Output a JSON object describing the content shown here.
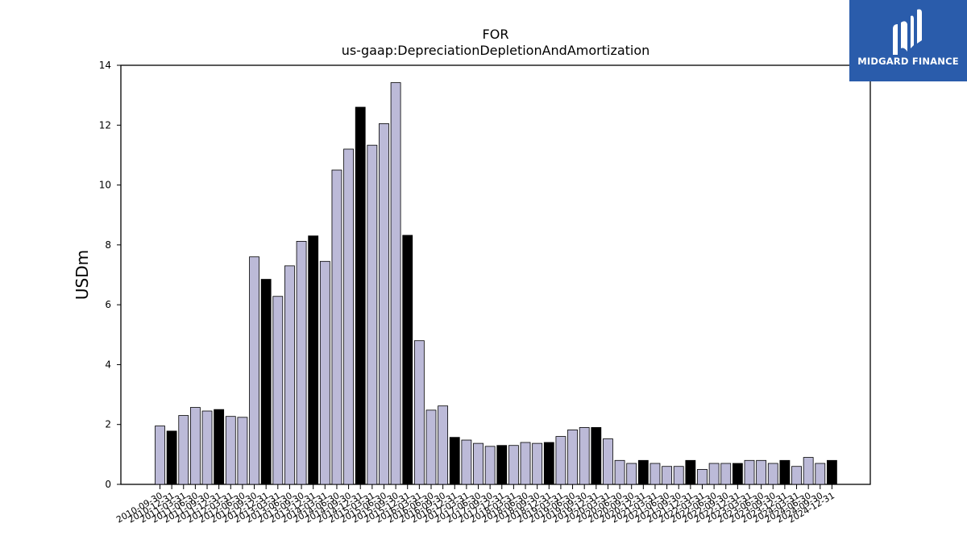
{
  "chart_data": {
    "type": "bar",
    "title_line1": "FOR",
    "title_line2": "us-gaap:DepreciationDepletionAndAmortization",
    "xlabel": "",
    "ylabel": "USDm",
    "ylim": [
      0,
      14
    ],
    "yticks": [
      0,
      2,
      4,
      6,
      8,
      10,
      12,
      14
    ],
    "grid": false,
    "colors": {
      "quarter": "#bcbad8",
      "year_end": "#000000",
      "edge": "#000000"
    },
    "categories": [
      "2010-09-30",
      "2010-12-31",
      "2011-03-31",
      "2011-06-30",
      "2011-09-30",
      "2011-12-31",
      "2012-03-31",
      "2012-06-30",
      "2012-09-30",
      "2012-12-31",
      "2013-03-31",
      "2013-06-30",
      "2013-09-30",
      "2013-12-31",
      "2014-03-31",
      "2014-06-30",
      "2014-09-30",
      "2014-12-31",
      "2015-03-31",
      "2015-06-30",
      "2015-09-30",
      "2015-12-31",
      "2016-03-31",
      "2016-06-30",
      "2016-09-30",
      "2016-12-31",
      "2017-03-31",
      "2017-06-30",
      "2017-09-30",
      "2017-12-31",
      "2018-03-31",
      "2018-06-30",
      "2018-09-30",
      "2018-12-31",
      "2019-03-31",
      "2019-06-30",
      "2019-09-30",
      "2019-12-31",
      "2020-03-31",
      "2020-06-30",
      "2020-09-30",
      "2020-12-31",
      "2021-03-31",
      "2021-06-30",
      "2021-09-30",
      "2021-12-31",
      "2022-03-31",
      "2022-06-30",
      "2022-09-30",
      "2022-12-31",
      "2023-03-31",
      "2023-06-30",
      "2023-09-30",
      "2023-12-31",
      "2024-03-31",
      "2024-06-30",
      "2024-09-30",
      "2024-12-31"
    ],
    "values": [
      1.95,
      1.78,
      2.3,
      2.57,
      2.45,
      2.5,
      2.27,
      2.24,
      7.6,
      6.85,
      6.28,
      7.3,
      8.12,
      8.3,
      7.45,
      10.5,
      11.2,
      12.6,
      11.33,
      12.05,
      13.42,
      8.32,
      4.8,
      2.48,
      2.62,
      1.57,
      1.48,
      1.37,
      1.27,
      1.3,
      1.3,
      1.4,
      1.37,
      1.4,
      1.6,
      1.82,
      1.9,
      1.9,
      1.52,
      0.8,
      0.7,
      0.8,
      0.7,
      0.6,
      0.6,
      0.8,
      0.5,
      0.7,
      0.7,
      0.7,
      0.8,
      0.8,
      0.7,
      0.8,
      0.6,
      0.9,
      0.7,
      0.8
    ],
    "year_end_flags": [
      0,
      1,
      0,
      0,
      0,
      1,
      0,
      0,
      0,
      1,
      0,
      0,
      0,
      1,
      0,
      0,
      0,
      1,
      0,
      0,
      0,
      1,
      0,
      0,
      0,
      1,
      0,
      0,
      0,
      1,
      0,
      0,
      0,
      1,
      0,
      0,
      0,
      1,
      0,
      0,
      0,
      1,
      0,
      0,
      0,
      1,
      0,
      0,
      0,
      1,
      0,
      0,
      0,
      1,
      0,
      0,
      0,
      1
    ]
  },
  "logo": {
    "name": "MIDGARD FINANCE",
    "icon": "midgard-logo-icon",
    "background": "#2a5cab"
  }
}
